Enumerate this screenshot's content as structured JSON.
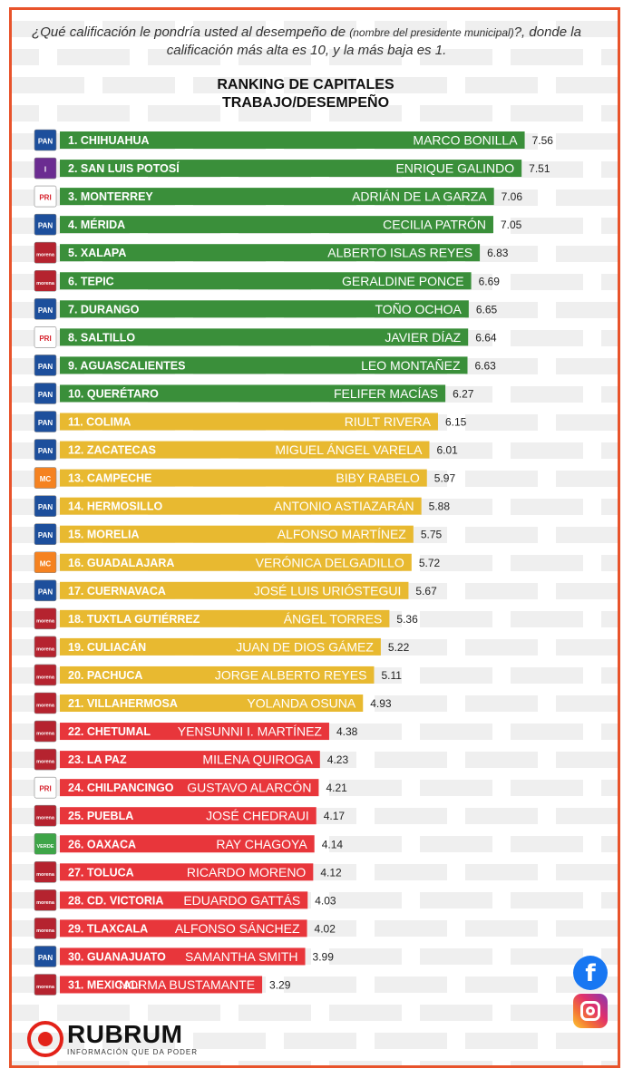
{
  "question": {
    "part1": "¿Qué calificación le pondría usted al desempeño de ",
    "small": "(nombre del presidente municipal)",
    "part2": "?, donde la calificación más alta es 10, y la más baja es 1."
  },
  "title_line1": "RANKING DE CAPITALES",
  "title_line2": "TRABAJO/DESEMPEÑO",
  "colors": {
    "green": "#3a8f3a",
    "yellow": "#e8b930",
    "red": "#e8363b",
    "frame": "#e8532b"
  },
  "party_icons": {
    "PAN": {
      "label": "PAN",
      "bg": "#1d4f9c",
      "fg": "#ffffff"
    },
    "IND": {
      "label": "I",
      "bg": "#6b2c91",
      "fg": "#ffffff"
    },
    "PRI": {
      "label": "PRI",
      "bg": "#ffffff",
      "fg": "#d6202b"
    },
    "MORENA": {
      "label": "morena",
      "bg": "#b5232f",
      "fg": "#ffffff"
    },
    "MC": {
      "label": "MC",
      "bg": "#f58220",
      "fg": "#ffffff"
    },
    "VERDE": {
      "label": "VERDE",
      "bg": "#3ea548",
      "fg": "#ffffff"
    }
  },
  "chart_data": {
    "type": "bar",
    "orientation": "horizontal",
    "xlim": [
      0,
      10
    ],
    "categories": [
      "1. CHIHUAHUA",
      "2. SAN LUIS POTOSÍ",
      "3. MONTERREY",
      "4. MÉRIDA",
      "5. XALAPA",
      "6. TEPIC",
      "7. DURANGO",
      "8. SALTILLO",
      "9. AGUASCALIENTES",
      "10. QUERÉTARO",
      "11. COLIMA",
      "12. ZACATECAS",
      "13. CAMPECHE",
      "14. HERMOSILLO",
      "15. MORELIA",
      "16. GUADALAJARA",
      "17. CUERNAVACA",
      "18. TUXTLA GUTIÉRREZ",
      "19. CULIACÁN",
      "20. PACHUCA",
      "21. VILLAHERMOSA",
      "22. CHETUMAL",
      "23. LA PAZ",
      "24. CHILPANCINGO",
      "25. PUEBLA",
      "26. OAXACA",
      "27. TOLUCA",
      "28. CD. VICTORIA",
      "29. TLAXCALA",
      "30. GUANAJUATO",
      "31. MEXICALI"
    ],
    "names": [
      "MARCO BONILLA",
      "ENRIQUE GALINDO",
      "ADRIÁN DE LA GARZA",
      "CECILIA PATRÓN",
      "ALBERTO ISLAS REYES",
      "GERALDINE PONCE",
      "TOÑO OCHOA",
      "JAVIER DÍAZ",
      "LEO MONTAÑEZ",
      "FELIFER MACÍAS",
      "RIULT RIVERA",
      "MIGUEL ÁNGEL VARELA",
      "BIBY RABELO",
      "ANTONIO ASTIAZARÁN",
      "ALFONSO MARTÍNEZ",
      "VERÓNICA DELGADILLO",
      "JOSÉ LUIS URIÓSTEGUI",
      "ÁNGEL TORRES",
      "JUAN DE DIOS GÁMEZ",
      "JORGE ALBERTO REYES",
      "YOLANDA OSUNA",
      "YENSUNNI I. MARTÍNEZ",
      "MILENA QUIROGA",
      "GUSTAVO ALARCÓN",
      "JOSÉ CHEDRAUI",
      "RAY CHAGOYA",
      "RICARDO MORENO",
      "EDUARDO GATTÁS",
      "ALFONSO SÁNCHEZ",
      "SAMANTHA SMITH",
      "NORMA BUSTAMANTE"
    ],
    "values": [
      7.56,
      7.51,
      7.06,
      7.05,
      6.83,
      6.69,
      6.65,
      6.64,
      6.63,
      6.27,
      6.15,
      6.01,
      5.97,
      5.88,
      5.75,
      5.72,
      5.67,
      5.36,
      5.22,
      5.11,
      4.93,
      4.38,
      4.23,
      4.21,
      4.17,
      4.14,
      4.12,
      4.03,
      4.02,
      3.99,
      3.29
    ],
    "value_labels": [
      "7.56",
      "7.51",
      "7.06",
      "7.05",
      "6.83",
      "6.69",
      "6.65",
      "6.64",
      "6.63",
      "6.27",
      "6.15",
      "6.01",
      "5.97",
      "5.88",
      "5.75",
      "5.72",
      "5.67",
      "5.36",
      "5.22",
      "5.11",
      "4.93",
      "4.38",
      "4.23",
      "4.21",
      "4.17",
      "4.14",
      "4.12",
      "4.03",
      "4.02",
      "3.99",
      "3.29"
    ],
    "parties": [
      "PAN",
      "IND",
      "PRI",
      "PAN",
      "MORENA",
      "MORENA",
      "PAN",
      "PRI",
      "PAN",
      "PAN",
      "PAN",
      "PAN",
      "MC",
      "PAN",
      "PAN",
      "MC",
      "PAN",
      "MORENA",
      "MORENA",
      "MORENA",
      "MORENA",
      "MORENA",
      "MORENA",
      "PRI",
      "MORENA",
      "VERDE",
      "MORENA",
      "MORENA",
      "MORENA",
      "PAN",
      "MORENA"
    ],
    "bar_colors": [
      "green",
      "green",
      "green",
      "green",
      "green",
      "green",
      "green",
      "green",
      "green",
      "green",
      "yellow",
      "yellow",
      "yellow",
      "yellow",
      "yellow",
      "yellow",
      "yellow",
      "yellow",
      "yellow",
      "yellow",
      "yellow",
      "red",
      "red",
      "red",
      "red",
      "red",
      "red",
      "red",
      "red",
      "red",
      "red"
    ]
  },
  "brand": {
    "name": "RUBRUM",
    "tagline": "INFORMACIÓN QUE DA PODER"
  },
  "social": {
    "facebook_icon": "facebook-icon",
    "instagram_icon": "instagram-icon",
    "facebook_glyph": "f"
  }
}
